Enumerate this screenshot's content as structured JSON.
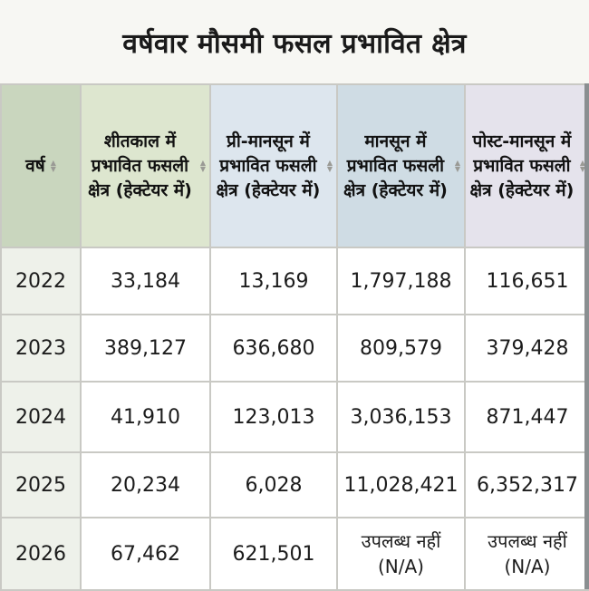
{
  "title": "वर्षवार मौसमी फसल प्रभावित क्षेत्र",
  "headers": {
    "year": "वर्ष",
    "col1": "शीतकाल में प्रभावित फसली क्षेत्र (हेक्टेयर में)",
    "col2": "प्री-मानसून में प्रभावित फसली क्षेत्र (हेक्टेयर में)",
    "col3": "मानसून में प्रभावित फसली क्षेत्र (हेक्टेयर में)",
    "col4": "पोस्ट-मानसून में प्रभावित फसली क्षेत्र (हेक्टेयर में)"
  },
  "rows": [
    {
      "year": "2022",
      "c1": "33,184",
      "c2": "13,169",
      "c3": "1,797,188",
      "c4": "116,651"
    },
    {
      "year": "2023",
      "c1": "389,127",
      "c2": "636,680",
      "c3": "809,579",
      "c4": "379,428"
    },
    {
      "year": "2024",
      "c1": "41,910",
      "c2": "123,013",
      "c3": "3,036,153",
      "c4": "871,447"
    },
    {
      "year": "2025",
      "c1": "20,234",
      "c2": "6,028",
      "c3": "11,028,421",
      "c4": "6,352,317"
    },
    {
      "year": "2026",
      "c1": "67,462",
      "c2": "621,501",
      "c3": "उपलब्ध नहीं (N/A)",
      "c4": "उपलब्ध नहीं (N/A)"
    }
  ],
  "colors": {
    "year_header": "#c9d6be",
    "col1_header": "#dde6cf",
    "col2_header": "#dde6ee",
    "col3_header": "#cfdce4",
    "col4_header": "#e5e3ec",
    "year_cells": "#eef1ea"
  },
  "icons": {
    "sort": "sort-arrows-icon"
  }
}
